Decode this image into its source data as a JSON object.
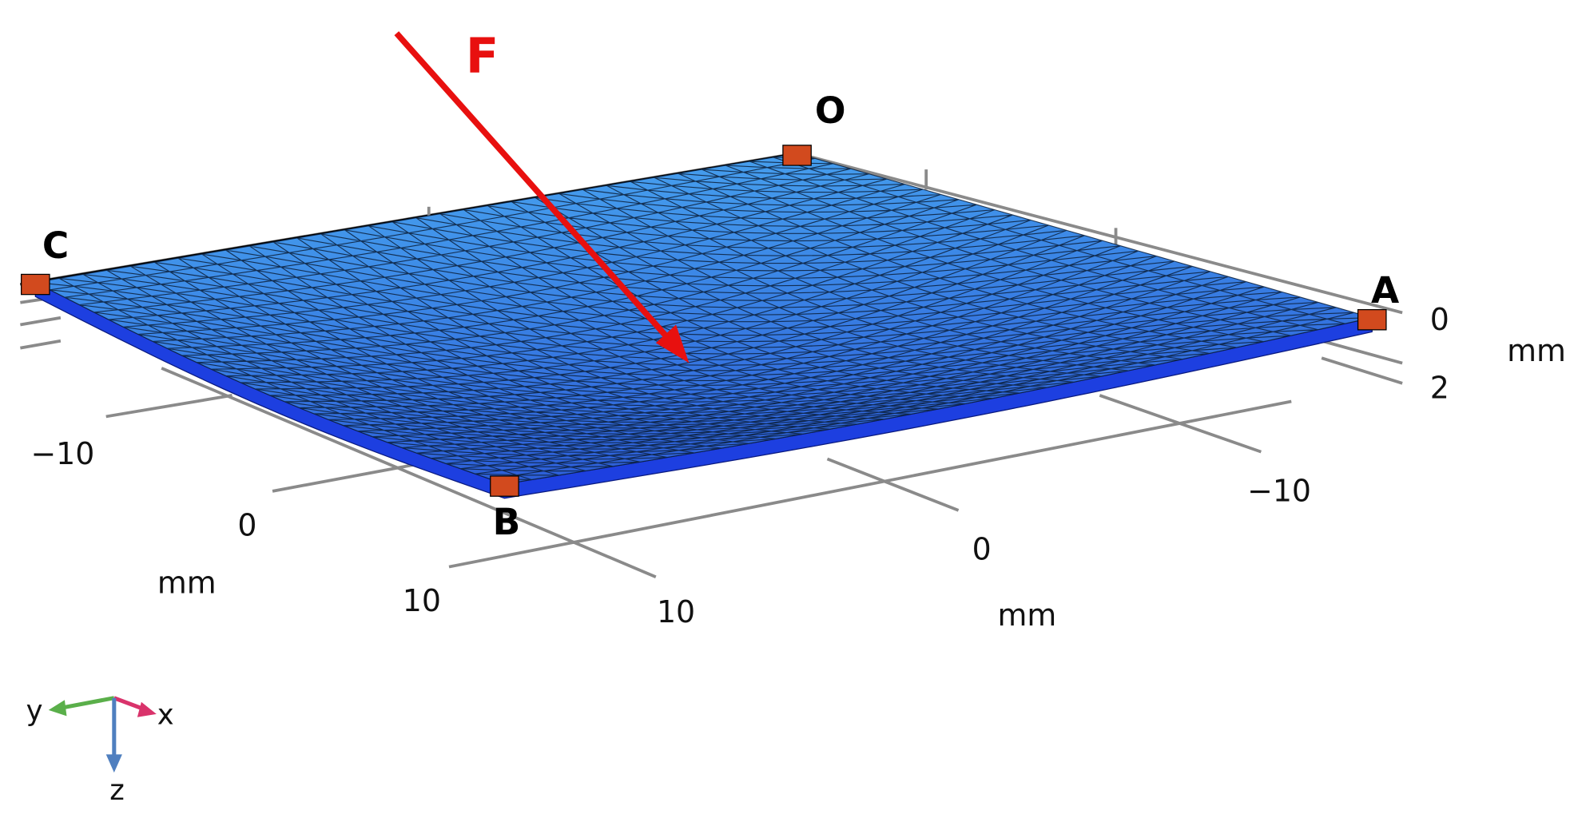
{
  "labels": {
    "force": "F",
    "corners": {
      "O": "O",
      "C": "C",
      "A": "A",
      "B": "B"
    }
  },
  "axes": {
    "left": {
      "ticks": [
        "−10",
        "0",
        "10"
      ],
      "unit": "mm"
    },
    "right": {
      "ticks": [
        "−10",
        "0",
        "10"
      ],
      "unit": "mm"
    },
    "vertical": {
      "ticks": [
        "0",
        "2"
      ],
      "unit": "mm"
    }
  },
  "triad": {
    "x": "x",
    "y": "y",
    "z": "z"
  }
}
